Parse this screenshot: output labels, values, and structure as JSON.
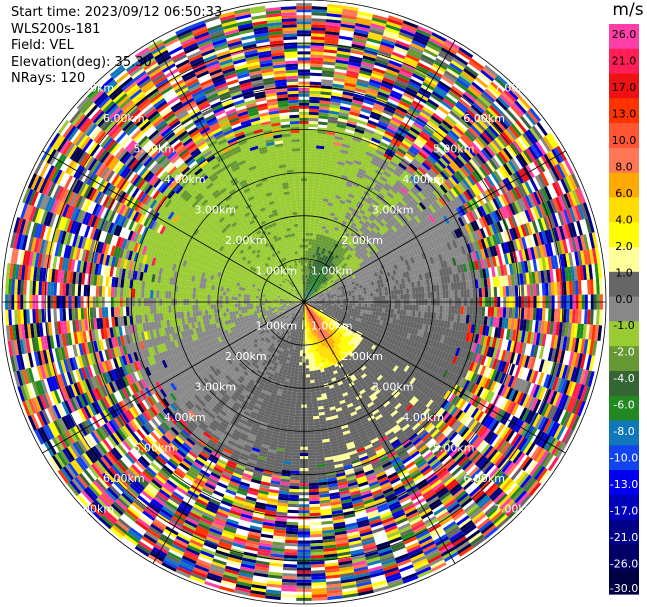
{
  "header": {
    "start_time": "Start time: 2023/09/12 06:50:33",
    "instrument": "WLS200s-181",
    "field": "Field: VEL",
    "elevation": "Elevation(deg): 35.30",
    "nrays": "NRays: 120"
  },
  "colorbar": {
    "unit": "m/s",
    "colors": [
      "#ff3ea8",
      "#ff1f55",
      "#ee1111",
      "#ff3300",
      "#ff5533",
      "#ff7755",
      "#ffaa00",
      "#ffdd00",
      "#ffff00",
      "#ffff99",
      "#666666",
      "#888888",
      "#99cc33",
      "#669933",
      "#336633",
      "#228822",
      "#1177bb",
      "#1144ee",
      "#0000ee",
      "#0000bb",
      "#000088",
      "#000066",
      "#000044"
    ],
    "labels": [
      "26.0",
      "21.0",
      "17.0",
      "13.0",
      "10.0",
      "8.0",
      "6.0",
      "4.0",
      "2.0",
      "1.0",
      "0.0",
      "-1.0",
      "-2.0",
      "-4.0",
      "-6.0",
      "-8.0",
      "-10.0",
      "-13.0",
      "-17.0",
      "-21.0",
      "-26.0",
      "-30.0"
    ]
  },
  "chart_data": {
    "type": "heatmap",
    "projection": "polar-ppi",
    "field": "VEL",
    "unit": "m/s",
    "nrays": 120,
    "elevation_deg": 35.3,
    "vmin": -30.0,
    "vmax": 30.0,
    "max_range_km": 7.0,
    "range_rings_km": [
      1.0,
      2.0,
      3.0,
      4.0,
      5.0,
      6.0,
      7.0
    ],
    "range_ring_labels": [
      "1.00km",
      "2.00km",
      "3.00km",
      "4.00km",
      "5.00km",
      "6.00km",
      "7.00km"
    ],
    "gate_spacing_km": 0.07,
    "velocity_pattern": {
      "positive_core_azimuth_deg": 150,
      "negative_core_azimuth_deg": 30,
      "noise_begins_km": 4.2
    }
  }
}
